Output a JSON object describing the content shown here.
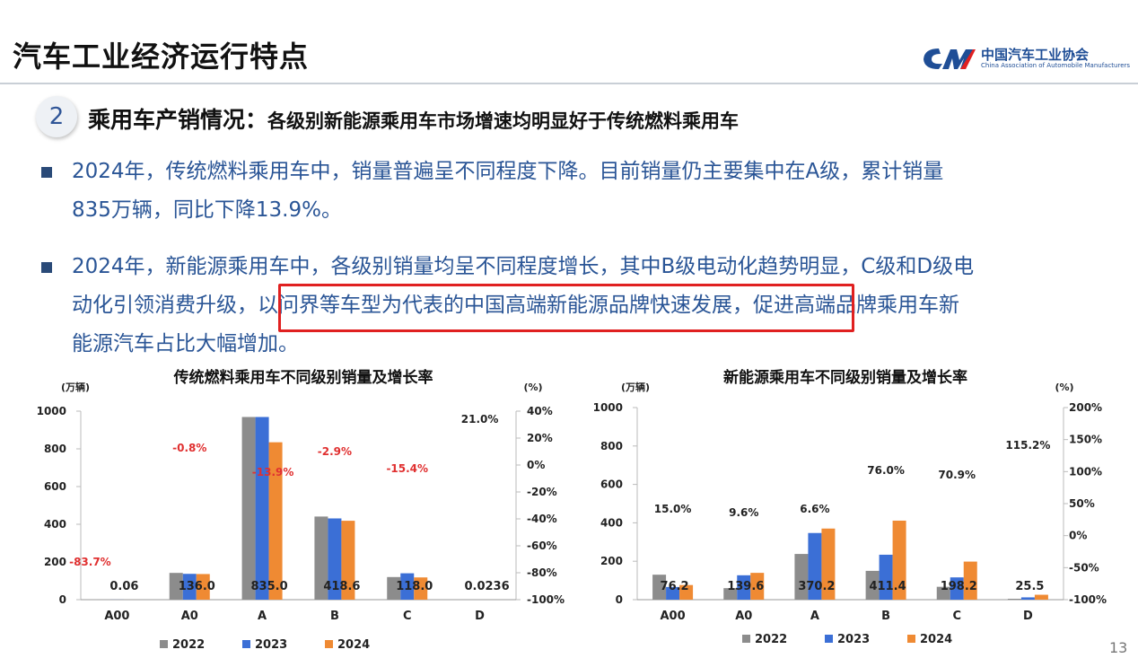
{
  "header": {
    "title": "汽车工业经济运行特点",
    "logo_cn": "中国汽车工业协会",
    "logo_en": "China Association of Automobile Manufacturers"
  },
  "section": {
    "number": "2",
    "title": "乘用车产销情况：",
    "subtitle": "各级别新能源乘用车市场增速均明显好于传统燃料乘用车"
  },
  "bullets": [
    {
      "lines": [
        "2024年，传统燃料乘用车中，销量普遍呈不同程度下降。目前销量仍主要集中在A级，累计销量",
        "835万辆，同比下降13.9%。"
      ]
    },
    {
      "lines_pre": "2024年，新能源乘用车中，各级别销量均呈不同程度增长，其中B级电动化趋势明显，C级和D级电",
      "line2_start": "动化引领消费升级，",
      "highlight": "以问界等车型为代表的中国高端新能源品牌快速发展",
      "line2_end": "，促进高端品牌乘用车新",
      "line3": "能源汽车占比大幅增加。"
    }
  ],
  "page_number": "13",
  "colors": {
    "s2022": "#8c8c8c",
    "s2023": "#3b6fd6",
    "s2024": "#ef8a33",
    "growth": "#e03030",
    "highlight_box": "#e02020"
  },
  "chart_data": [
    {
      "type": "bar",
      "title": "传统燃料乘用车不同级别销量及增长率",
      "left_unit": "(万辆)",
      "right_unit": "(%)",
      "categories": [
        "A00",
        "A0",
        "A",
        "B",
        "C",
        "D"
      ],
      "series": [
        {
          "name": "2022",
          "values": [
            0.3,
            142,
            969,
            441,
            120,
            0.03
          ]
        },
        {
          "name": "2023",
          "values": [
            0.37,
            137,
            969,
            431,
            140,
            0.02
          ]
        },
        {
          "name": "2024",
          "values": [
            0.06,
            136.0,
            835.0,
            418.6,
            118.0,
            0.0236
          ]
        }
      ],
      "data_labels": [
        "0.06",
        "136.0",
        "835.0",
        "418.6",
        "118.0",
        "0.0236"
      ],
      "growth_labels": [
        "-83.7%",
        "-0.8%",
        "-13.9%",
        "-2.9%",
        "-15.4%",
        "21.0%"
      ],
      "growth_values": [
        -83.7,
        -0.8,
        -13.9,
        -2.9,
        -15.4,
        21.0
      ],
      "ylim": [
        0,
        1000
      ],
      "yticks": [
        "0",
        "200",
        "400",
        "600",
        "800",
        "1000"
      ],
      "y2ticks": [
        "-100%",
        "-80%",
        "-60%",
        "-40%",
        "-20%",
        "0%",
        "20%",
        "40%"
      ],
      "y2lim": [
        -100,
        40
      ]
    },
    {
      "type": "bar",
      "title": "新能源乘用车不同级别销量及增长率",
      "left_unit": "(万辆)",
      "right_unit": "(%)",
      "categories": [
        "A00",
        "A0",
        "A",
        "B",
        "C",
        "D"
      ],
      "series": [
        {
          "name": "2022",
          "values": [
            130,
            60,
            238,
            150,
            67,
            3
          ]
        },
        {
          "name": "2023",
          "values": [
            66,
            127,
            347,
            234,
            116,
            12
          ]
        },
        {
          "name": "2024",
          "values": [
            76.2,
            139.6,
            370.2,
            411.4,
            198.2,
            25.5
          ]
        }
      ],
      "data_labels": [
        "76.2",
        "139.6",
        "370.2",
        "411.4",
        "198.2",
        "25.5"
      ],
      "growth_labels": [
        "15.0%",
        "9.6%",
        "6.6%",
        "76.0%",
        "70.9%",
        "115.2%"
      ],
      "growth_values": [
        15.0,
        9.6,
        6.6,
        76.0,
        70.9,
        115.2
      ],
      "ylim": [
        0,
        1000
      ],
      "yticks": [
        "0",
        "200",
        "400",
        "600",
        "800",
        "1000"
      ],
      "y2ticks": [
        "-100%",
        "-50%",
        "0%",
        "50%",
        "100%",
        "150%",
        "200%"
      ],
      "y2lim": [
        -100,
        200
      ]
    }
  ]
}
